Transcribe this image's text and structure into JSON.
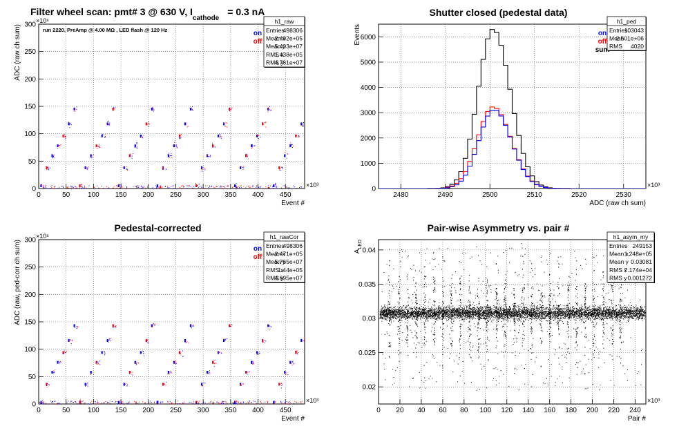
{
  "colors": {
    "on": "#0000ff",
    "off": "#ff0000",
    "sum": "#000000",
    "grid": "#555555"
  },
  "chart_data": [
    {
      "id": "raw",
      "type": "scatter",
      "title_main": "Filter wheel scan: pmt#   3 @   630 V, I",
      "title_sub": "cathode",
      "title_tail": "= 0.3 nA",
      "annotation": "run 2220, PreAmp @ 4.00 MΩ , LED flash @  120 Hz",
      "xlabel": "Event #",
      "ylabel": "ADC (raw ch sum)",
      "x_exponent": "×10³",
      "y_exponent": "×10⁶",
      "xlim": [
        0,
        485
      ],
      "ylim": [
        0,
        300
      ],
      "x_ticks": [
        "0",
        "50",
        "100",
        "150",
        "200",
        "250",
        "300",
        "350",
        "400",
        "450"
      ],
      "y_ticks": [
        "0",
        "50",
        "100",
        "150",
        "200",
        "250",
        "300"
      ],
      "legend": [
        "on",
        "off"
      ],
      "levels": [
        5,
        38,
        60,
        78,
        96,
        118,
        145
      ],
      "stats": {
        "name": "h1_raw",
        "rows": [
          [
            "Entries",
            "498306"
          ],
          [
            "Mean x",
            "2.492e+05"
          ],
          [
            "Mean y",
            "5.403e+07"
          ],
          [
            "RMS x",
            "1.438e+05"
          ],
          [
            "RMS y",
            "4.781e+07"
          ]
        ]
      }
    },
    {
      "id": "ped",
      "type": "line",
      "title": "Shutter closed (pedestal data)",
      "xlabel": "ADC (raw ch sum)",
      "ylabel": "Events",
      "x_exponent": "×10³",
      "xlim": [
        2475,
        2535
      ],
      "ylim": [
        0,
        6500
      ],
      "x_ticks": [
        "2480",
        "2490",
        "2500",
        "2510",
        "2520",
        "2530"
      ],
      "y_ticks": [
        "0",
        "1000",
        "2000",
        "3000",
        "4000",
        "5000",
        "6000"
      ],
      "legend": [
        "on",
        "off",
        "sum"
      ],
      "series": [
        {
          "name": "sum",
          "mean": 2500.7,
          "sigma": 3.4,
          "peak": 6300
        },
        {
          "name": "off",
          "mean": 2500.7,
          "sigma": 3.5,
          "peak": 3230
        },
        {
          "name": "on",
          "mean": 2500.9,
          "sigma": 3.4,
          "peak": 3120
        }
      ],
      "stats": {
        "name": "h1_ped",
        "rows": [
          [
            "Entries",
            "103043"
          ],
          [
            "Mean",
            "2.501e+06"
          ],
          [
            "RMS",
            "4020"
          ]
        ]
      }
    },
    {
      "id": "rawcor",
      "type": "scatter",
      "title": "Pedestal-corrected",
      "xlabel": "Event #",
      "ylabel": "ADC (raw, ped-corr ch sum)",
      "x_exponent": "×10³",
      "y_exponent": "×10⁶",
      "xlim": [
        0,
        485
      ],
      "ylim": [
        0,
        300
      ],
      "x_ticks": [
        "0",
        "50",
        "100",
        "150",
        "200",
        "250",
        "300",
        "350",
        "400",
        "450"
      ],
      "y_ticks": [
        "0",
        "50",
        "100",
        "150",
        "200",
        "250",
        "300"
      ],
      "legend": [
        "on",
        "off"
      ],
      "levels": [
        3,
        36,
        58,
        76,
        94,
        116,
        143
      ],
      "stats": {
        "name": "h1_rawCor",
        "rows": [
          [
            "Entries",
            "498306"
          ],
          [
            "Mean x",
            "2.471e+05"
          ],
          [
            "Mean y",
            "5.765e+07"
          ],
          [
            "RMS x",
            "1.44e+05"
          ],
          [
            "RMS y",
            "4.695e+07"
          ]
        ]
      }
    },
    {
      "id": "asym",
      "type": "scatter",
      "title": "Pair-wise Asymmetry vs. pair #",
      "xlabel": "Pair #",
      "ylabel": "A",
      "ylabel_sub": "LED",
      "x_exponent": "×10³",
      "xlim": [
        0,
        250
      ],
      "ylim": [
        0.0175,
        0.0415
      ],
      "x_ticks": [
        "0",
        "20",
        "40",
        "60",
        "80",
        "100",
        "120",
        "140",
        "160",
        "180",
        "200",
        "220",
        "240"
      ],
      "y_ticks": [
        "0.02",
        "0.025",
        "0.03",
        "0.035",
        "0.04"
      ],
      "band_center": 0.0308,
      "spike_x": [
        10,
        19,
        27,
        35,
        43,
        52,
        60,
        68,
        76,
        85,
        93,
        101,
        110,
        118,
        127,
        135,
        143,
        152,
        160,
        168,
        177,
        185,
        193,
        201,
        210,
        218,
        226
      ],
      "stats": {
        "name": "h1_asym_my",
        "rows": [
          [
            "Entries",
            "249153"
          ],
          [
            "Mean x",
            "1.248e+05"
          ],
          [
            "Mean y",
            "0.03081"
          ],
          [
            "RMS x",
            "7.174e+04"
          ],
          [
            "RMS y",
            "0.001272"
          ]
        ]
      }
    }
  ]
}
